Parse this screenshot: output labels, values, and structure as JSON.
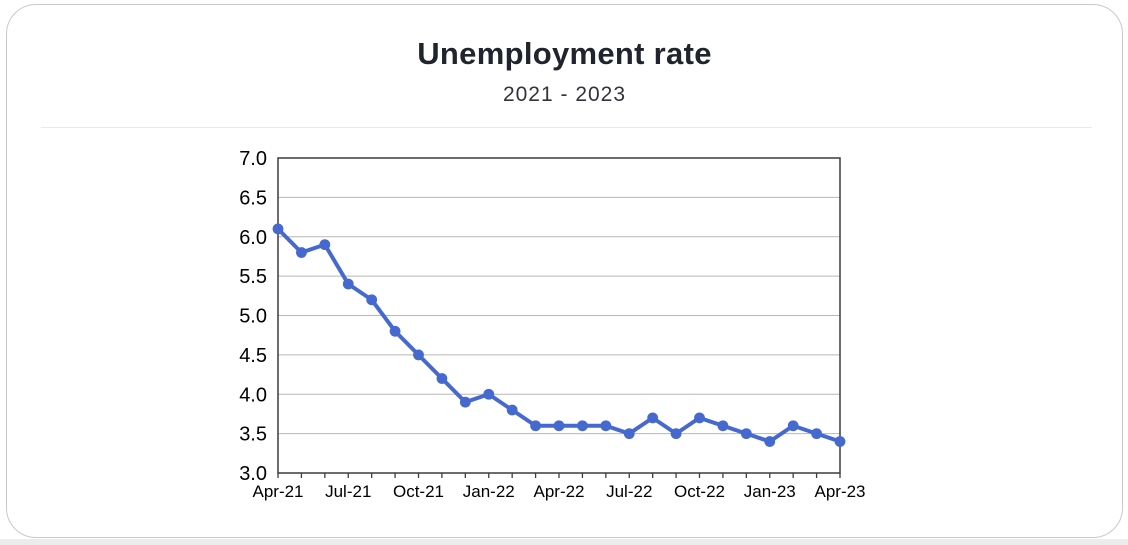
{
  "header": {
    "title": "Unemployment rate",
    "subtitle": "2021 - 2023"
  },
  "chart_data": {
    "type": "line",
    "title": "Unemployment rate",
    "subtitle": "2021 - 2023",
    "x": [
      "Apr-21",
      "May-21",
      "Jun-21",
      "Jul-21",
      "Aug-21",
      "Sep-21",
      "Oct-21",
      "Nov-21",
      "Dec-21",
      "Jan-22",
      "Feb-22",
      "Mar-22",
      "Apr-22",
      "May-22",
      "Jun-22",
      "Jul-22",
      "Aug-22",
      "Sep-22",
      "Oct-22",
      "Nov-22",
      "Dec-22",
      "Jan-23",
      "Feb-23",
      "Mar-23",
      "Apr-23"
    ],
    "values": [
      6.1,
      5.8,
      5.9,
      5.4,
      5.2,
      4.8,
      4.5,
      4.2,
      3.9,
      4.0,
      3.8,
      3.6,
      3.6,
      3.6,
      3.6,
      3.5,
      3.7,
      3.5,
      3.7,
      3.6,
      3.5,
      3.4,
      3.6,
      3.5,
      3.4
    ],
    "ylim": [
      3.0,
      7.0
    ],
    "y_tick_labels": [
      "3.0",
      "3.5",
      "4.0",
      "4.5",
      "5.0",
      "5.5",
      "6.0",
      "6.5",
      "7.0"
    ],
    "x_tick_labels": [
      "Apr-21",
      "Jul-21",
      "Oct-21",
      "Jan-22",
      "Apr-22",
      "Jul-22",
      "Oct-22",
      "Jan-23",
      "Apr-23"
    ],
    "x_label_every": 3,
    "grid": true,
    "legend": "none",
    "line_color": "#4569cf",
    "marker_color": "#4569cf",
    "grid_color": "#b7b7b7",
    "axis_color": "#3c3c3c"
  }
}
